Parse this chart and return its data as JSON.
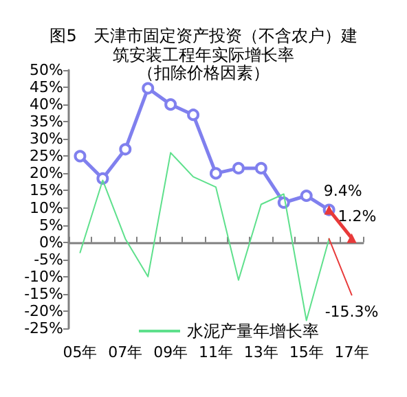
{
  "chart_data": {
    "type": "line",
    "title": "图5　天津市固定资产投资（不含农户）建筑安装工程年实际增长率",
    "subtitle": "（扣除价格因素）",
    "categories": [
      "05年",
      null,
      "07年",
      null,
      "09年",
      null,
      "11年",
      null,
      "13年",
      null,
      "15年",
      null,
      "17年"
    ],
    "series": [
      {
        "color": "#8080ee",
        "marker": "circle",
        "values": [
          25,
          18.5,
          27,
          44.7,
          40,
          37,
          20,
          21.5,
          21.5,
          11.5,
          13.5,
          9.4,
          null
        ]
      },
      {
        "name": "水泥产量年增长率",
        "color": "#5ee08c",
        "marker": "none",
        "values": [
          -3,
          18,
          1,
          -10,
          26,
          19,
          16,
          -11,
          11,
          14,
          -22.7,
          1,
          null
        ]
      },
      {
        "color": "#e83a3a",
        "marker": "triangle",
        "values": [
          null,
          null,
          null,
          null,
          null,
          null,
          null,
          null,
          null,
          null,
          null,
          9.4,
          1.2
        ],
        "value_labels": [
          null,
          null,
          null,
          null,
          null,
          null,
          null,
          null,
          null,
          null,
          null,
          "9.4%",
          "1.2%"
        ]
      },
      {
        "color": "#e83a3a",
        "marker": "none",
        "values": [
          null,
          null,
          null,
          null,
          null,
          null,
          null,
          null,
          null,
          null,
          null,
          1,
          -15.3
        ],
        "value_labels": [
          null,
          null,
          null,
          null,
          null,
          null,
          null,
          null,
          null,
          null,
          null,
          null,
          "-15.3%"
        ]
      }
    ],
    "ylim": [
      -25,
      50
    ],
    "yticks": [
      {
        "value": -25,
        "label": "-25%"
      },
      {
        "value": -20,
        "label": "-20%"
      },
      {
        "value": -15,
        "label": "-15%"
      },
      {
        "value": -10,
        "label": "-10%"
      },
      {
        "value": -5,
        "label": "-5%"
      },
      {
        "value": 0,
        "label": "0%"
      },
      {
        "value": 5,
        "label": "5%"
      },
      {
        "value": 10,
        "label": "10%"
      },
      {
        "value": 15,
        "label": "15%"
      },
      {
        "value": 20,
        "label": "20%"
      },
      {
        "value": 25,
        "label": "25%"
      },
      {
        "value": 30,
        "label": "30%"
      },
      {
        "value": 35,
        "label": "35%"
      },
      {
        "value": 40,
        "label": "40%"
      },
      {
        "value": 45,
        "label": "45%"
      },
      {
        "value": 50,
        "label": "50%"
      }
    ],
    "legend": "bottom",
    "line_style": "solid"
  }
}
